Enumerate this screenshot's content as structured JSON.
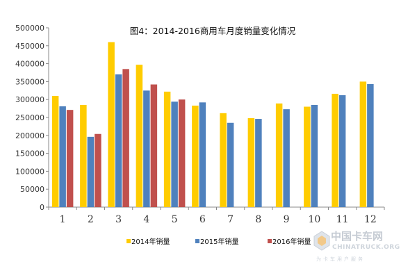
{
  "chart_data": {
    "type": "bar",
    "title": "图4：2014-2016商用车月度销量变化情况",
    "categories": [
      "1",
      "2",
      "3",
      "4",
      "5",
      "6",
      "7",
      "8",
      "9",
      "10",
      "11",
      "12"
    ],
    "ylim": [
      0,
      500000
    ],
    "yticks": [
      "0",
      "50000",
      "100000",
      "150000",
      "200000",
      "250000",
      "300000",
      "350000",
      "400000",
      "450000",
      "500000"
    ],
    "legend_position": "bottom",
    "series": [
      {
        "name": "2014年销量",
        "color": "#ffcc00",
        "values": [
          310000,
          285000,
          460000,
          397000,
          322000,
          283000,
          262000,
          248000,
          289000,
          280000,
          316000,
          350000
        ]
      },
      {
        "name": "2015年销量",
        "color": "#4f81bd",
        "values": [
          281000,
          196000,
          370000,
          325000,
          294000,
          292000,
          235000,
          246000,
          273000,
          285000,
          312000,
          343000
        ]
      },
      {
        "name": "2016年销量",
        "color": "#c0504d",
        "values": [
          271000,
          204000,
          385000,
          342000,
          300000,
          null,
          null,
          null,
          null,
          null,
          null,
          null
        ]
      }
    ]
  },
  "watermark": {
    "cn": "中国卡车网",
    "en": "CHINATRUCK.ORG",
    "slogan": "为卡车用户服务"
  }
}
